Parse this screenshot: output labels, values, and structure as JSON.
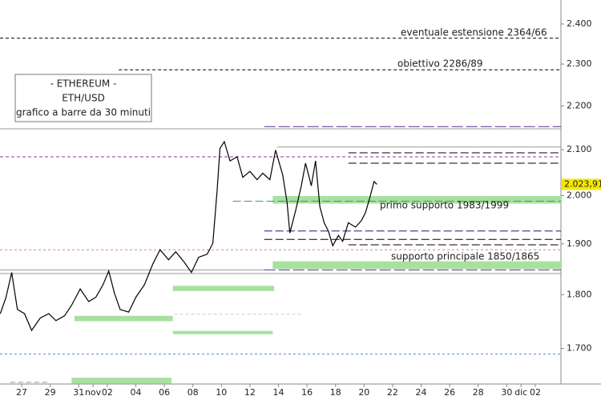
{
  "chart_data": {
    "type": "line",
    "info_box": [
      "- ETHEREUM -",
      "ETH/USD",
      "grafico a barre da 30 minuti"
    ],
    "annotations": [
      "eventuale estensione 2364/66",
      "obiettivo 2286/89",
      "primo supporto 1983/1999",
      "supporto principale 1850/1865"
    ],
    "log_y": true,
    "xlim": [
      -1.52,
      37.8
    ],
    "ylim": [
      1637,
      2462
    ],
    "xticks": [
      {
        "value": 0,
        "label": "27"
      },
      {
        "value": 2,
        "label": "29"
      },
      {
        "value": 4,
        "label": "31"
      },
      {
        "value": 5,
        "label": "nov"
      },
      {
        "value": 6,
        "label": "02"
      },
      {
        "value": 8,
        "label": "04"
      },
      {
        "value": 10,
        "label": "06"
      },
      {
        "value": 12,
        "label": "08"
      },
      {
        "value": 14,
        "label": "10"
      },
      {
        "value": 16,
        "label": "12"
      },
      {
        "value": 18,
        "label": "14"
      },
      {
        "value": 20,
        "label": "16"
      },
      {
        "value": 22,
        "label": "18"
      },
      {
        "value": 24,
        "label": "20"
      },
      {
        "value": 26,
        "label": "22"
      },
      {
        "value": 28,
        "label": "24"
      },
      {
        "value": 30,
        "label": "26"
      },
      {
        "value": 32,
        "label": "28"
      },
      {
        "value": 34,
        "label": "30"
      },
      {
        "value": 35,
        "label": "dic"
      },
      {
        "value": 36,
        "label": "02"
      }
    ],
    "yticks": [
      {
        "value": 1700,
        "label": "1.700"
      },
      {
        "value": 1800,
        "label": "1.800"
      },
      {
        "value": 1900,
        "label": "1.900"
      },
      {
        "value": 2000,
        "label": "2.000"
      },
      {
        "value": 2100,
        "label": "2.100"
      },
      {
        "value": 2200,
        "label": "2.200"
      },
      {
        "value": 2300,
        "label": "2.300"
      },
      {
        "value": 2400,
        "label": "2.400"
      }
    ],
    "last_price": {
      "value": 2023.91,
      "label": "2.023,91"
    },
    "series": [
      {
        "name": "ETH/USD",
        "color": "#000000",
        "x": [
          -1.5,
          -1.1,
          -0.7,
          -0.3,
          0.2,
          0.7,
          1.3,
          1.9,
          2.4,
          3.0,
          3.5,
          4.1,
          4.7,
          5.2,
          5.7,
          6.1,
          6.5,
          6.9,
          7.5,
          8.0,
          8.6,
          9.2,
          9.7,
          10.3,
          10.8,
          11.4,
          11.9,
          12.4,
          13.0,
          13.4,
          13.7,
          13.9,
          14.2,
          14.6,
          15.1,
          15.5,
          16.0,
          16.5,
          16.9,
          17.4,
          17.8,
          18.3,
          18.6,
          18.8,
          19.2,
          19.6,
          19.9,
          20.3,
          20.6,
          20.9,
          21.2,
          21.5,
          21.8,
          22.2,
          22.5,
          22.9,
          23.4,
          23.8,
          24.1,
          24.4,
          24.7,
          24.9
        ],
        "values": [
          1764,
          1795,
          1843,
          1772,
          1764,
          1733,
          1756,
          1764,
          1751,
          1760,
          1780,
          1811,
          1787,
          1795,
          1819,
          1846,
          1803,
          1772,
          1767,
          1795,
          1819,
          1860,
          1888,
          1868,
          1884,
          1863,
          1843,
          1873,
          1879,
          1901,
          2012,
          2103,
          2118,
          2075,
          2084,
          2039,
          2052,
          2034,
          2048,
          2034,
          2099,
          2044,
          1986,
          1922,
          1968,
          2021,
          2070,
          2021,
          2075,
          1977,
          1943,
          1926,
          1896,
          1917,
          1905,
          1943,
          1934,
          1947,
          1964,
          1995,
          2030,
          2024
        ]
      }
    ],
    "levels": [
      {
        "value": 2364,
        "from": -1.52,
        "to": 37.8,
        "color": "#000000",
        "dash": "4,3"
      },
      {
        "value": 2286,
        "from": 6.8,
        "to": 37.8,
        "color": "#000000",
        "dash": "4,3"
      },
      {
        "value": 2147,
        "from": -1.52,
        "to": 37.8,
        "color": "#999999",
        "dash": "none"
      },
      {
        "value": 2152,
        "from": 17.0,
        "to": 37.8,
        "color": "#5a2d91",
        "dash": "14,4"
      },
      {
        "value": 2106,
        "from": 17.9,
        "to": 37.8,
        "color": "#999999",
        "dash": "none"
      },
      {
        "value": 2093,
        "from": 22.9,
        "to": 37.8,
        "color": "#000000",
        "dash": "10,4"
      },
      {
        "value": 2084,
        "from": -1.52,
        "to": 37.8,
        "color": "#8b3a8b",
        "dash": "4,3"
      },
      {
        "value": 2070,
        "from": 22.9,
        "to": 37.8,
        "color": "#000000",
        "dash": "10,4"
      },
      {
        "value": 1988,
        "from": 14.8,
        "to": 37.8,
        "color": "#3a8fa4",
        "dash": "10,4"
      },
      {
        "value": 1926,
        "from": 17.0,
        "to": 37.8,
        "color": "#1a1a6a",
        "dash": "10,4"
      },
      {
        "value": 1909,
        "from": 17.0,
        "to": 37.8,
        "color": "#000000",
        "dash": "10,4"
      },
      {
        "value": 1898,
        "from": 22.9,
        "to": 37.8,
        "color": "#000000",
        "dash": "10,4"
      },
      {
        "value": 1888,
        "from": -1.52,
        "to": 37.8,
        "color": "#d98080",
        "dash": "3,3"
      },
      {
        "value": 1848,
        "from": -1.52,
        "to": 17.0,
        "color": "#999999",
        "dash": "none"
      },
      {
        "value": 1848,
        "from": 17.0,
        "to": 37.8,
        "color": "#5a2d91",
        "dash": "14,4"
      },
      {
        "value": 1841,
        "from": -1.52,
        "to": 37.8,
        "color": "#999999",
        "dash": "none"
      },
      {
        "value": 1763,
        "from": 10.7,
        "to": 19.7,
        "color": "#cccccc",
        "dash": "4,3"
      },
      {
        "value": 1690,
        "from": -1.52,
        "to": 37.8,
        "color": "#5b8fc9",
        "dash": "3,3"
      },
      {
        "value": 1640,
        "from": -0.8,
        "to": 1.9,
        "color": "#999999",
        "dash": "6,4"
      }
    ],
    "zones": [
      {
        "low": 1983,
        "high": 1999,
        "from": 17.6,
        "to": 37.8,
        "color": "#a8e0a0"
      },
      {
        "low": 1850,
        "high": 1865,
        "from": 17.6,
        "to": 37.8,
        "color": "#a8e0a0"
      },
      {
        "low": 1807,
        "high": 1817,
        "from": 10.6,
        "to": 17.7,
        "color": "#a8e0a0"
      },
      {
        "low": 1750,
        "high": 1760,
        "from": 3.7,
        "to": 10.6,
        "color": "#a8e0a0"
      },
      {
        "low": 1726,
        "high": 1732,
        "from": 10.6,
        "to": 17.6,
        "color": "#a8e0a0"
      },
      {
        "low": 1638,
        "high": 1648,
        "from": 3.5,
        "to": 10.5,
        "color": "#a8e0a0"
      }
    ]
  }
}
